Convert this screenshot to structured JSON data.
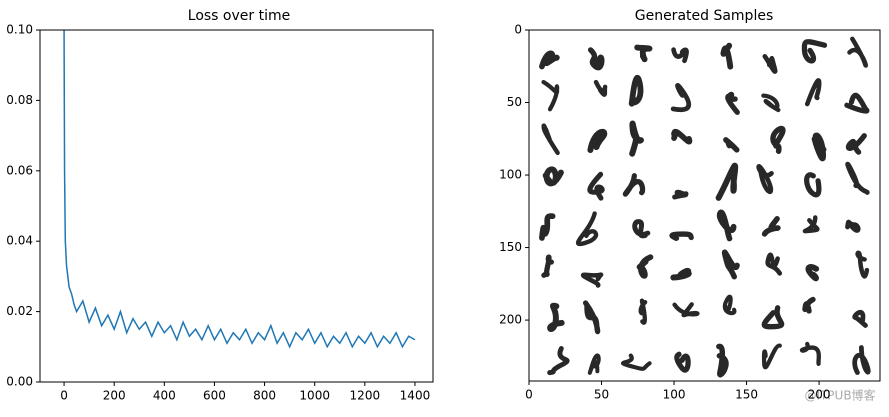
{
  "chart_data": [
    {
      "type": "line",
      "title": "Loss over time",
      "x": [
        0,
        2,
        5,
        10,
        15,
        20,
        30,
        40,
        50,
        75,
        100,
        125,
        150,
        175,
        200,
        225,
        250,
        275,
        300,
        325,
        350,
        375,
        400,
        425,
        450,
        475,
        500,
        525,
        550,
        575,
        600,
        625,
        650,
        675,
        700,
        725,
        750,
        775,
        800,
        825,
        850,
        875,
        900,
        925,
        950,
        975,
        1000,
        1025,
        1050,
        1075,
        1100,
        1125,
        1150,
        1175,
        1200,
        1225,
        1250,
        1275,
        1300,
        1325,
        1350,
        1375,
        1400
      ],
      "values": [
        0.1,
        0.06,
        0.04,
        0.033,
        0.03,
        0.027,
        0.025,
        0.022,
        0.02,
        0.023,
        0.017,
        0.021,
        0.016,
        0.019,
        0.015,
        0.02,
        0.014,
        0.018,
        0.015,
        0.017,
        0.013,
        0.017,
        0.014,
        0.016,
        0.012,
        0.017,
        0.013,
        0.015,
        0.012,
        0.016,
        0.012,
        0.015,
        0.011,
        0.014,
        0.012,
        0.015,
        0.011,
        0.014,
        0.012,
        0.016,
        0.011,
        0.014,
        0.01,
        0.014,
        0.012,
        0.015,
        0.011,
        0.014,
        0.01,
        0.013,
        0.011,
        0.014,
        0.01,
        0.013,
        0.011,
        0.014,
        0.01,
        0.013,
        0.011,
        0.014,
        0.01,
        0.013,
        0.012
      ],
      "color": "#1f77b4",
      "xlim": [
        -96,
        1472
      ],
      "ylim": [
        0,
        0.1
      ],
      "xticks": [
        0,
        200,
        400,
        600,
        800,
        1000,
        1200,
        1400
      ],
      "yticks": [
        {
          "value": 0,
          "label": "0.00"
        },
        {
          "value": 0.02,
          "label": "0.02"
        },
        {
          "value": 0.04,
          "label": "0.04"
        },
        {
          "value": 0.06,
          "label": "0.06"
        },
        {
          "value": 0.08,
          "label": "0.08"
        },
        {
          "value": 0.1,
          "label": "0.10"
        }
      ]
    },
    {
      "type": "image",
      "title": "Generated Samples",
      "xlim": [
        0,
        242
      ],
      "ylim": [
        242,
        0
      ],
      "xticks": [
        0,
        50,
        100,
        150,
        200
      ],
      "yticks": [
        0,
        50,
        100,
        150,
        200
      ],
      "watermark": "@ITPUB博客"
    }
  ]
}
